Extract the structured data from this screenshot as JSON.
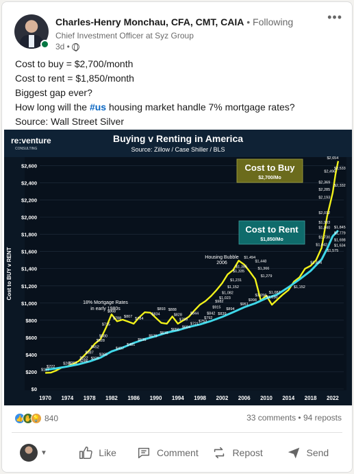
{
  "post": {
    "author": {
      "name": "Charles-Henry Monchau, CFA, CMT, CAIA",
      "follow_status": " • Following",
      "headline": "Chief Investment Officer at Syz Group",
      "time": "3d •"
    },
    "text_lines": [
      "Cost to buy = $2,700/month",
      "Cost to rent = $1,850/month",
      "Biggest gap ever?",
      "How long will the ",
      "#us",
      " housing market handle 7% mortgage rates?",
      "Source: Wall Street Silver"
    ],
    "more_icon": "more-horizontal-icon"
  },
  "chart_image": {
    "brand_main": "re:venture",
    "brand_sub": "CONSULTING",
    "title": "Buying v Renting in America",
    "subtitle": "Source: Zillow / Case Shiller / BLS",
    "buy_box_title": "Cost to Buy",
    "buy_box_value": "$2,700/Mo",
    "rent_box_title": "Cost to Rent",
    "rent_box_value": "$1,850/Mo",
    "annotation_1": "18% Mortgage Rates",
    "annotation_2": "in early 1980s",
    "annotation_3": "Housing Bubble",
    "annotation_4": "2006",
    "y_axis_label": "Cost to BUY v RENT",
    "colors": {
      "buy": "#f2f21a",
      "rent": "#3fd7e8",
      "buy_box": "#6b6b1c",
      "rent_box": "#0f6b6b"
    }
  },
  "chart_data": {
    "type": "line",
    "ylim": [
      0,
      2700
    ],
    "xlim": [
      1969,
      2024
    ],
    "y_ticks": [
      "$0",
      "$200",
      "$400",
      "$600",
      "$800",
      "$1,000",
      "$1,200",
      "$1,400",
      "$1,600",
      "$1,800",
      "$2,000",
      "$2,200",
      "$2,400",
      "$2,600"
    ],
    "y_tick_values": [
      0,
      200,
      400,
      600,
      800,
      1000,
      1200,
      1400,
      1600,
      1800,
      2000,
      2200,
      2400,
      2600
    ],
    "x_ticks": [
      "1970",
      "1974",
      "1978",
      "1982",
      "1986",
      "1990",
      "1994",
      "1998",
      "2002",
      "2006",
      "2010",
      "2014",
      "2018",
      "2022"
    ],
    "x_tick_values": [
      1970,
      1974,
      1978,
      1982,
      1986,
      1990,
      1994,
      1998,
      2002,
      2006,
      2010,
      2014,
      2018,
      2022
    ],
    "series": [
      {
        "name": "Cost to Buy",
        "x": [
          1970,
          1971,
          1972,
          1973,
          1974,
          1975,
          1976,
          1977,
          1978,
          1979,
          1980,
          1981,
          1982,
          1983,
          1984,
          1985,
          1986,
          1987,
          1988,
          1989,
          1990,
          1991,
          1992,
          1993,
          1994,
          1995,
          1996,
          1997,
          1998,
          1999,
          2000,
          2001,
          2002,
          2003,
          2004,
          2005,
          2006,
          2007,
          2008,
          2009,
          2010,
          2011,
          2012,
          2013,
          2014,
          2015,
          2016,
          2017,
          2018,
          2019,
          2020,
          2021,
          2022,
          2022.5,
          2023
        ],
        "values": [
          187,
          190,
          215,
          250,
          263,
          290,
          322,
          387,
          452,
          528,
          580,
          715,
          868,
          788,
          807,
          784,
          760,
          834,
          893,
          888,
          828,
          769,
          760,
          844,
          760,
          800,
          842,
          915,
          982,
          1023,
          1082,
          1152,
          1231,
          1335,
          1385,
          1494,
          1448,
          1366,
          1279,
          1030,
          1087,
          980,
          1040,
          1100,
          1152,
          1249,
          1300,
          1400,
          1434,
          1500,
          1642,
          2012,
          2285,
          2496,
          2654
        ]
      },
      {
        "name": "Cost to Rent",
        "x": [
          1970,
          1972,
          1974,
          1976,
          1978,
          1980,
          1982,
          1984,
          1986,
          1988,
          1990,
          1992,
          1994,
          1996,
          1998,
          2000,
          2002,
          2004,
          2006,
          2008,
          2010,
          2012,
          2014,
          2016,
          2018,
          2020,
          2021,
          2022,
          2023
        ],
        "values": [
          222,
          240,
          261,
          286,
          320,
          365,
          437,
          481,
          535,
          579,
          615,
          656,
          684,
          721,
          752,
          792,
          839,
          894,
          951,
          998,
          1056,
          1100,
          1185,
          1276,
          1375,
          1508,
          1634,
          1779,
          1845
        ]
      }
    ],
    "point_labels": [
      {
        "x": 1970,
        "y": 187,
        "text": "$187"
      },
      {
        "x": 1975,
        "y": 263,
        "text": "$263"
      },
      {
        "x": 1977,
        "y": 322,
        "text": "$322"
      },
      {
        "x": 1978,
        "y": 387,
        "text": "$387"
      },
      {
        "x": 1979,
        "y": 452,
        "text": "$452"
      },
      {
        "x": 1980,
        "y": 528,
        "text": "$528"
      },
      {
        "x": 1980.5,
        "y": 580,
        "text": "$580"
      },
      {
        "x": 1981,
        "y": 715,
        "text": "$715"
      },
      {
        "x": 1982,
        "y": 868,
        "text": "$868"
      },
      {
        "x": 1983,
        "y": 788,
        "text": "$788"
      },
      {
        "x": 1985,
        "y": 807,
        "text": "$807"
      },
      {
        "x": 1987,
        "y": 784,
        "text": "$784"
      },
      {
        "x": 1990,
        "y": 834,
        "text": "$834"
      },
      {
        "x": 1991,
        "y": 893,
        "text": "$893"
      },
      {
        "x": 1993,
        "y": 888,
        "text": "$888"
      },
      {
        "x": 1994,
        "y": 828,
        "text": "$828"
      },
      {
        "x": 1995,
        "y": 769,
        "text": "$769"
      },
      {
        "x": 1997,
        "y": 844,
        "text": "$844"
      },
      {
        "x": 2000,
        "y": 842,
        "text": "$842"
      },
      {
        "x": 2001,
        "y": 915,
        "text": "$915"
      },
      {
        "x": 2001.5,
        "y": 982,
        "text": "$982"
      },
      {
        "x": 2002.5,
        "y": 1023,
        "text": "$1,023"
      },
      {
        "x": 2003,
        "y": 1082,
        "text": "$1,082"
      },
      {
        "x": 2004,
        "y": 1152,
        "text": "$1,152"
      },
      {
        "x": 2004.5,
        "y": 1231,
        "text": "$1,231"
      },
      {
        "x": 2005,
        "y": 1335,
        "text": "$1,335"
      },
      {
        "x": 2005.5,
        "y": 1385,
        "text": "$1,385"
      },
      {
        "x": 2007,
        "y": 1494,
        "text": "$1,494"
      },
      {
        "x": 2009,
        "y": 1448,
        "text": "$1,448"
      },
      {
        "x": 2009.5,
        "y": 1366,
        "text": "$1,366"
      },
      {
        "x": 2010,
        "y": 1279,
        "text": "$1,279"
      },
      {
        "x": 2011,
        "y": 1030,
        "text": "$1,030"
      },
      {
        "x": 2011.5,
        "y": 1087,
        "text": "$1,087"
      },
      {
        "x": 2016,
        "y": 1152,
        "text": "$1,152"
      },
      {
        "x": 2019,
        "y": 1434,
        "text": "$1,434"
      },
      {
        "x": 2020,
        "y": 1642,
        "text": "$1,642"
      },
      {
        "x": 2020.5,
        "y": 1730,
        "text": "$1,730"
      },
      {
        "x": 2020.5,
        "y": 1840,
        "text": "$1,840"
      },
      {
        "x": 2020.5,
        "y": 1903,
        "text": "$1,903"
      },
      {
        "x": 2020.5,
        "y": 2012,
        "text": "$2,012"
      },
      {
        "x": 2020.5,
        "y": 2193,
        "text": "$2,193"
      },
      {
        "x": 2020.5,
        "y": 2285,
        "text": "$2,285"
      },
      {
        "x": 2020.5,
        "y": 2369,
        "text": "$2,369"
      },
      {
        "x": 2021.5,
        "y": 2496,
        "text": "$2,496"
      },
      {
        "x": 2022,
        "y": 2654,
        "text": "$2,654"
      },
      {
        "x": 2023.3,
        "y": 2533,
        "text": "$2,533"
      },
      {
        "x": 2023.3,
        "y": 2332,
        "text": "$2,332"
      },
      {
        "x": 1971,
        "y": 222,
        "text": "$222"
      },
      {
        "x": 1974,
        "y": 261,
        "text": "$261"
      },
      {
        "x": 1977,
        "y": 286,
        "text": "$286"
      },
      {
        "x": 1979,
        "y": 320,
        "text": "$320"
      },
      {
        "x": 1980.5,
        "y": 365,
        "text": "$365"
      },
      {
        "x": 1983.5,
        "y": 437,
        "text": "$437"
      },
      {
        "x": 1985.5,
        "y": 481,
        "text": "$481"
      },
      {
        "x": 1987.5,
        "y": 535,
        "text": "$535"
      },
      {
        "x": 1989.5,
        "y": 579,
        "text": "$579"
      },
      {
        "x": 1991.5,
        "y": 615,
        "text": "$615"
      },
      {
        "x": 1993.5,
        "y": 656,
        "text": "$656"
      },
      {
        "x": 1995.5,
        "y": 684,
        "text": "$684"
      },
      {
        "x": 1997,
        "y": 721,
        "text": "$721"
      },
      {
        "x": 1998.5,
        "y": 752,
        "text": "$752"
      },
      {
        "x": 1999.5,
        "y": 792,
        "text": "$792"
      },
      {
        "x": 2002,
        "y": 839,
        "text": "$839"
      },
      {
        "x": 2003.5,
        "y": 894,
        "text": "$894"
      },
      {
        "x": 2006,
        "y": 951,
        "text": "$951"
      },
      {
        "x": 2007.5,
        "y": 998,
        "text": "$998"
      },
      {
        "x": 2009,
        "y": 1056,
        "text": "$1,056"
      },
      {
        "x": 2023.3,
        "y": 1845,
        "text": "$1,845"
      },
      {
        "x": 2023.3,
        "y": 1779,
        "text": "$1,779"
      },
      {
        "x": 2023.3,
        "y": 1698,
        "text": "$1,698"
      },
      {
        "x": 2023.3,
        "y": 1634,
        "text": "$1,634"
      },
      {
        "x": 2022,
        "y": 1575,
        "text": "$1,575"
      }
    ]
  },
  "social": {
    "reaction_count": "840",
    "comments_reposts": "33 comments • 94 reposts",
    "reaction_icons": [
      "like-icon",
      "celebrate-icon",
      "insightful-icon"
    ]
  },
  "actions": {
    "like": "Like",
    "comment": "Comment",
    "repost": "Repost",
    "send": "Send"
  }
}
